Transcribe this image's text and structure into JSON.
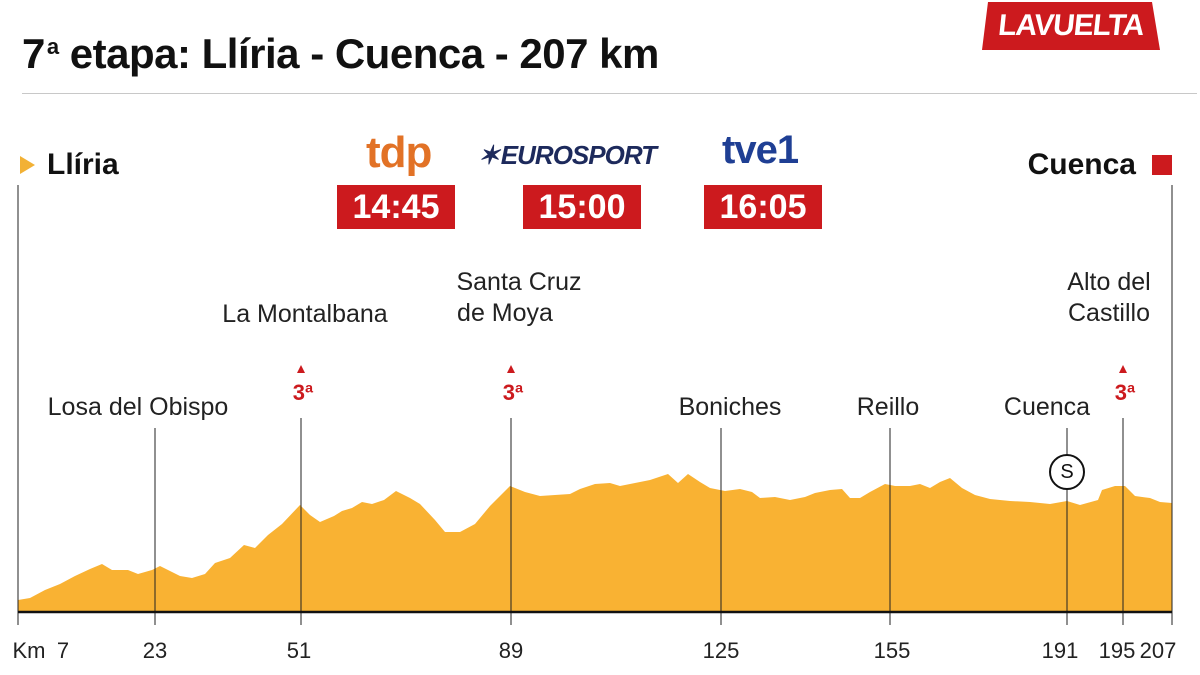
{
  "header": {
    "title_main": "7",
    "title_sup": "a",
    "title_rest": "etapa: Llíria - Cuenca - 207 km",
    "brand": "LAVUELTA"
  },
  "endpoints": {
    "start": "Llíria",
    "finish": "Cuenca"
  },
  "broadcast": [
    {
      "channel": "tdp",
      "time": "14:45"
    },
    {
      "channel": "EUROSPORT",
      "time": "15:00"
    },
    {
      "channel": "tve1",
      "time": "16:05"
    }
  ],
  "waypoints": [
    {
      "label_lines": [
        "Losa del Obispo"
      ],
      "km": "23"
    },
    {
      "label_lines": [
        "La Montalbana"
      ],
      "km": "51",
      "category": "3ª"
    },
    {
      "label_lines": [
        "Santa Cruz",
        "de Moya"
      ],
      "km": "89",
      "category": "3ª"
    },
    {
      "label_lines": [
        "Boniches"
      ],
      "km": "125"
    },
    {
      "label_lines": [
        "Reillo"
      ],
      "km": "155"
    },
    {
      "label_lines": [
        "Cuenca"
      ],
      "km": "191",
      "sprint": "S"
    },
    {
      "label_lines": [
        "Alto del",
        "Castillo"
      ],
      "km": "195",
      "category": "3ª"
    }
  ],
  "km_axis": {
    "prefix": "Km",
    "first": "7",
    "last": "207"
  },
  "colors": {
    "profile_fill": "#f9b233",
    "accent_red": "#cc1a1e",
    "start_marker": "#f2b135"
  }
}
